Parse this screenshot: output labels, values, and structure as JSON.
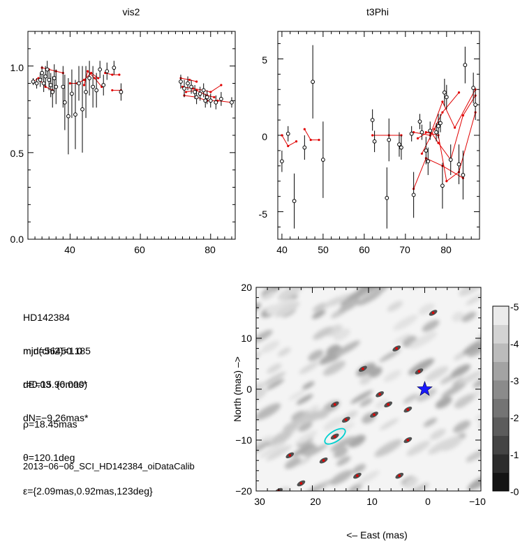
{
  "chart_data": [
    {
      "type": "scatter",
      "title": "vis2",
      "xlabel": "",
      "ylabel": "",
      "xlim": [
        28,
        87
      ],
      "ylim": [
        0.0,
        1.2
      ],
      "xticks": [
        "40",
        "60",
        "80"
      ],
      "yticks": [
        "0.0",
        "0.5",
        "1.0"
      ],
      "series": [
        {
          "points": [
            [
              29.5,
              0.91,
              0.02
            ],
            [
              30.5,
              0.9,
              0.03
            ],
            [
              31.5,
              0.92,
              0.04
            ],
            [
              32,
              0.96,
              0.04
            ],
            [
              32.5,
              0.9,
              0.05
            ],
            [
              33,
              0.94,
              0.06
            ],
            [
              33.5,
              0.98,
              0.05
            ],
            [
              34,
              0.92,
              0.06
            ],
            [
              34.5,
              0.89,
              0.07
            ],
            [
              35,
              0.85,
              0.09
            ],
            [
              35.5,
              0.93,
              0.08
            ],
            [
              36,
              0.88,
              0.1
            ],
            [
              38,
              0.88,
              0.12
            ],
            [
              38.5,
              0.79,
              0.16
            ],
            [
              39.5,
              0.71,
              0.22
            ],
            [
              40.5,
              0.84,
              0.14
            ],
            [
              41.5,
              0.72,
              0.2
            ],
            [
              42.5,
              0.9,
              0.1
            ],
            [
              43.5,
              0.75,
              0.25
            ],
            [
              44.5,
              0.85,
              0.15
            ],
            [
              45.5,
              0.93,
              0.1
            ],
            [
              46.5,
              0.88,
              0.12
            ],
            [
              47.5,
              0.86,
              0.1
            ],
            [
              48.5,
              0.98,
              0.05
            ],
            [
              49.5,
              0.89,
              0.06
            ],
            [
              50.5,
              0.97,
              0.05
            ],
            [
              52.5,
              0.99,
              0.04
            ],
            [
              54.5,
              0.85,
              0.05
            ],
            [
              71.5,
              0.91,
              0.04
            ],
            [
              72.5,
              0.87,
              0.05
            ],
            [
              73.5,
              0.9,
              0.04
            ],
            [
              74.5,
              0.88,
              0.04
            ],
            [
              75.5,
              0.85,
              0.04
            ],
            [
              76,
              0.82,
              0.04
            ],
            [
              77,
              0.84,
              0.04
            ],
            [
              78,
              0.86,
              0.04
            ],
            [
              78.5,
              0.8,
              0.04
            ],
            [
              79,
              0.82,
              0.04
            ],
            [
              80,
              0.8,
              0.04
            ],
            [
              81.5,
              0.79,
              0.04
            ],
            [
              83,
              0.81,
              0.04
            ],
            [
              86,
              0.79,
              0.03
            ]
          ]
        },
        {
          "style": "model",
          "color": "#e00000",
          "segments": [
            [
              [
                29.5,
                0.91
              ],
              [
                31,
                0.93
              ],
              [
                33,
                0.88
              ],
              [
                35,
                0.86
              ]
            ],
            [
              [
                32,
                0.99
              ],
              [
                34,
                0.98
              ],
              [
                36,
                0.97
              ],
              [
                38,
                0.96
              ]
            ],
            [
              [
                40,
                0.9
              ],
              [
                42,
                0.9
              ],
              [
                44,
                0.92
              ],
              [
                46,
                0.96
              ],
              [
                48,
                0.93
              ]
            ],
            [
              [
                44,
                0.89
              ],
              [
                45,
                0.97
              ],
              [
                47,
                0.93
              ],
              [
                49,
                0.88
              ]
            ],
            [
              [
                50,
                0.96
              ],
              [
                52,
                0.95
              ],
              [
                54,
                0.95
              ]
            ],
            [
              [
                52,
                0.86
              ],
              [
                54.5,
                0.86
              ]
            ],
            [
              [
                71.5,
                0.93
              ],
              [
                74,
                0.92
              ],
              [
                76,
                0.91
              ]
            ],
            [
              [
                72,
                0.88
              ],
              [
                75,
                0.87
              ],
              [
                78,
                0.86
              ],
              [
                80,
                0.85
              ],
              [
                83,
                0.89
              ]
            ],
            [
              [
                73,
                0.85
              ],
              [
                76,
                0.86
              ],
              [
                79,
                0.83
              ],
              [
                81,
                0.82
              ]
            ],
            [
              [
                72.5,
                0.83
              ],
              [
                76,
                0.82
              ],
              [
                79,
                0.8
              ],
              [
                82,
                0.8
              ],
              [
                86,
                0.79
              ]
            ]
          ]
        }
      ]
    },
    {
      "type": "scatter",
      "title": "t3Phi",
      "xlabel": "",
      "ylabel": "",
      "xlim": [
        39,
        88
      ],
      "ylim": [
        -6.8,
        6.8
      ],
      "xticks": [
        "40",
        "50",
        "60",
        "70",
        "80"
      ],
      "yticks": [
        "-5",
        "0",
        "5"
      ],
      "series": [
        {
          "points": [
            [
              40,
              -1.7,
              0.7
            ],
            [
              41.5,
              0.1,
              0.5
            ],
            [
              43,
              -4.3,
              1.8
            ],
            [
              45.5,
              -0.8,
              0.8
            ],
            [
              47.5,
              3.5,
              2.4
            ],
            [
              50,
              -1.6,
              2.5
            ],
            [
              62,
              1.0,
              0.7
            ],
            [
              62.5,
              -0.4,
              0.7
            ],
            [
              65.5,
              -4.1,
              2.0
            ],
            [
              66,
              -0.3,
              1.4
            ],
            [
              68.5,
              -0.6,
              0.8
            ],
            [
              69,
              -0.8,
              0.8
            ],
            [
              71.5,
              0.1,
              0.5
            ],
            [
              72,
              -3.9,
              1.5
            ],
            [
              73.5,
              0.9,
              0.5
            ],
            [
              74,
              0.2,
              0.5
            ],
            [
              75,
              -1.0,
              0.9
            ],
            [
              75.5,
              -1.7,
              0.9
            ],
            [
              76,
              0.3,
              0.6
            ],
            [
              77.5,
              0.2,
              0.6
            ],
            [
              78,
              0.6,
              0.8
            ],
            [
              78.5,
              0.8,
              0.6
            ],
            [
              79,
              -3.3,
              1.5
            ],
            [
              79.5,
              2.8,
              0.9
            ],
            [
              80,
              2.5,
              0.8
            ],
            [
              81,
              -1.6,
              1.0
            ],
            [
              83,
              -1.9,
              1.3
            ],
            [
              84,
              -2.6,
              1.6
            ],
            [
              84.5,
              4.6,
              1.2
            ],
            [
              86.5,
              3.1,
              1.0
            ],
            [
              87,
              2.0,
              1.0
            ]
          ]
        },
        {
          "style": "model",
          "color": "#e00000",
          "segments": [
            [
              [
                40,
                0.0
              ],
              [
                41.5,
                -0.7
              ],
              [
                43.5,
                -0.4
              ]
            ],
            [
              [
                45.5,
                0.4
              ],
              [
                47,
                -0.3
              ],
              [
                49,
                -0.3
              ]
            ],
            [
              [
                62,
                0.0
              ],
              [
                66,
                0.0
              ],
              [
                69,
                0.0
              ]
            ],
            [
              [
                72,
                -3.5
              ],
              [
                75,
                -1.5
              ],
              [
                79,
                -2.0
              ],
              [
                84,
                -2.8
              ]
            ],
            [
              [
                72,
                0.2
              ],
              [
                76,
                0.0
              ],
              [
                79,
                2.2
              ],
              [
                82,
                0.5
              ],
              [
                87,
                3.0
              ]
            ],
            [
              [
                73,
                -0.2
              ],
              [
                76,
                0.3
              ],
              [
                78,
                -0.5
              ],
              [
                81,
                -1.6
              ],
              [
                84,
                1.3
              ],
              [
                87,
                2.6
              ]
            ],
            [
              [
                74,
                -1.2
              ],
              [
                77,
                0.4
              ],
              [
                79,
                1.5
              ],
              [
                83,
                2.8
              ]
            ],
            [
              [
                75,
                0.2
              ],
              [
                78,
                0.0
              ],
              [
                80,
                -3.0
              ],
              [
                83,
                -2.4
              ],
              [
                87,
                1.5
              ]
            ]
          ]
        }
      ]
    },
    {
      "type": "heatmap",
      "xlabel": "<–  East (mas)",
      "ylabel": "North (mas)  –>",
      "xlim": [
        30,
        -10
      ],
      "ylim": [
        -20,
        20
      ],
      "xticks": [
        "30",
        "20",
        "10",
        "0",
        "−10"
      ],
      "yticks": [
        "−20",
        "−10",
        "0",
        "10",
        "20"
      ],
      "colorbar": {
        "range": [
          0,
          5
        ],
        "labels": [
          "-5",
          "-4",
          "-3",
          "-2",
          "-1",
          "-0"
        ]
      },
      "star": {
        "x": 0,
        "y": 0,
        "color": "#1a1aff"
      },
      "best_fit_ellipse": {
        "x": 15.96,
        "y": -9.26,
        "a": 2.09,
        "b": 0.92,
        "angle_deg": 123,
        "color": "#00d0d0"
      },
      "minima": [
        [
          -1.5,
          15
        ],
        [
          1,
          3.5
        ],
        [
          3,
          -4
        ],
        [
          3,
          -10
        ],
        [
          4.5,
          -17
        ],
        [
          5,
          8
        ],
        [
          6.5,
          -3
        ],
        [
          8,
          -1
        ],
        [
          9,
          -5
        ],
        [
          11,
          4
        ],
        [
          12,
          -17
        ],
        [
          14,
          -6
        ],
        [
          16,
          -9.3
        ],
        [
          18,
          -14
        ],
        [
          22,
          -18.5
        ],
        [
          24,
          -13
        ],
        [
          26,
          -20
        ],
        [
          16,
          -3
        ]
      ]
    }
  ],
  "info": {
    "target": "HD142384",
    "mjd": "mjd=56450.185",
    "chi2": "min(chi2)=1.0",
    "r": "r=0.03  (0.000)",
    "dE": "dE=15.96mas*",
    "dN": "dN=−9.26mas*",
    "rho": "ρ=18.45mas",
    "theta": "θ=120.1deg",
    "epsilon": "ε={2.09mas,0.92mas,123deg}",
    "file": "2013−06−06_SCI_HD142384_oiDataCalib"
  }
}
